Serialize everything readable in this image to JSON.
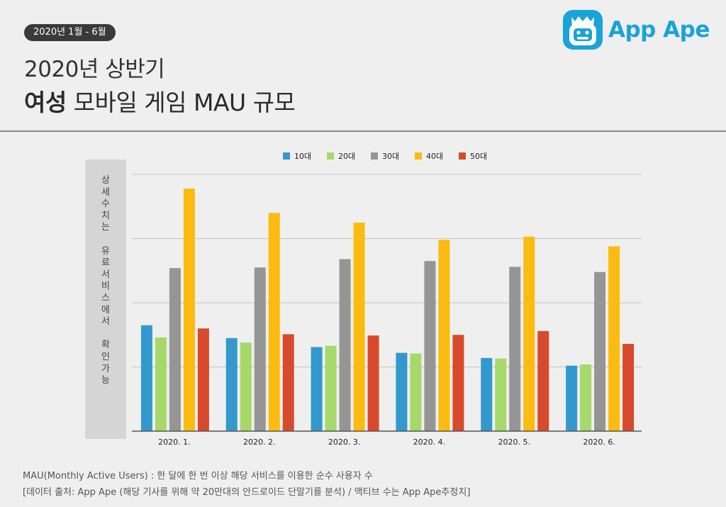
{
  "header": {
    "period_badge": "2020년 1월 - 6월",
    "title_line1": "2020년 상반기",
    "title_bold": "여성",
    "title_rest": " 모바일 게임 MAU 규모",
    "logo_text": "App Ape",
    "logo_icon": "ape-face-icon"
  },
  "side_note": "상\n세\n수\n치\n는\n \n유\n료\n서\n비\n스\n에\n서\n \n확\n인\n가\n능",
  "footnotes": {
    "line1": "MAU(Monthly Active Users) : 한 달에 한 번 이상 해당 서비스를 이용한 순수 사용자 수",
    "line2": "[데이터 출처: App Ape (해당 기사를 위해 약 20만대의 안드로이드 단말기를 분석) / 액티브 수는 App Ape추정치]"
  },
  "chart_data": {
    "type": "bar",
    "categories": [
      "2020. 1.",
      "2020. 2.",
      "2020. 3.",
      "2020. 4.",
      "2020. 5.",
      "2020. 6."
    ],
    "series": [
      {
        "name": "10대",
        "color": "#3399cc",
        "values": [
          1.65,
          1.45,
          1.31,
          1.22,
          1.14,
          1.02
        ]
      },
      {
        "name": "20대",
        "color": "#a6d96a",
        "values": [
          1.46,
          1.38,
          1.33,
          1.21,
          1.13,
          1.04
        ]
      },
      {
        "name": "30대",
        "color": "#959595",
        "values": [
          2.54,
          2.55,
          2.68,
          2.65,
          2.56,
          2.48
        ]
      },
      {
        "name": "40대",
        "color": "#fbbb10",
        "values": [
          3.78,
          3.4,
          3.25,
          2.98,
          3.03,
          2.88
        ]
      },
      {
        "name": "50대",
        "color": "#d84a2c",
        "values": [
          1.6,
          1.51,
          1.49,
          1.5,
          1.56,
          1.36
        ]
      }
    ],
    "ylim": [
      0,
      4
    ],
    "grid": true,
    "y_tick_labels_shown": false,
    "legend_position": "top-center"
  }
}
